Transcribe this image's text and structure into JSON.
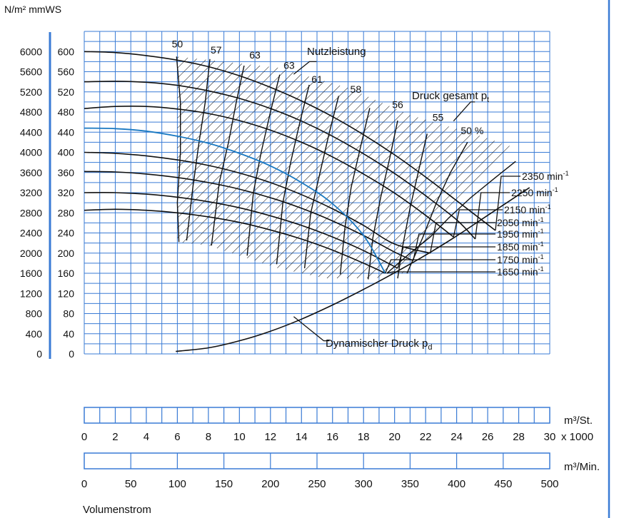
{
  "chart_data": {
    "type": "line",
    "title": "",
    "units": {
      "pa": "N/m² mmWS",
      "q_h": "m³/St.",
      "q_min": "m³/Min.",
      "q_h_factor": "x 1000"
    },
    "xlabel": "Volumenstrom",
    "ylim_mmws": [
      0,
      640
    ],
    "xlim_m3h_x1000": [
      0,
      30
    ],
    "xlim_m3min": [
      0,
      500
    ],
    "yticks_pa": [
      "0",
      "400",
      "800",
      "1200",
      "1600",
      "2000",
      "2400",
      "2800",
      "3200",
      "3600",
      "4000",
      "4400",
      "4800",
      "5200",
      "5600",
      "6000"
    ],
    "yticks_mmws": [
      "0",
      "40",
      "80",
      "120",
      "160",
      "200",
      "240",
      "280",
      "320",
      "360",
      "400",
      "440",
      "480",
      "520",
      "560",
      "600"
    ],
    "xticks_m3h": [
      "0",
      "2",
      "4",
      "6",
      "8",
      "10",
      "12",
      "14",
      "16",
      "18",
      "20",
      "22",
      "24",
      "26",
      "28",
      "30"
    ],
    "xticks_m3min": [
      "0",
      "50",
      "100",
      "150",
      "200",
      "250",
      "300",
      "350",
      "400",
      "450",
      "500"
    ],
    "series": [
      {
        "name": "2350 min-1",
        "label_main": "2350 min",
        "x": [
          0,
          2,
          4,
          6,
          8,
          10,
          12,
          14,
          16,
          18,
          20,
          22,
          24,
          26.5
        ],
        "y": [
          600,
          598,
          592,
          583,
          570,
          552,
          529,
          502,
          471,
          435,
          395,
          351,
          304,
          245
        ]
      },
      {
        "name": "2250 min-1",
        "label_main": "2250 min",
        "x": [
          0,
          2,
          4,
          6,
          8,
          10,
          12,
          14,
          16,
          18,
          20,
          22,
          24,
          25.2
        ],
        "y": [
          540,
          541,
          539,
          533,
          522,
          507,
          487,
          462,
          432,
          397,
          358,
          314,
          266,
          228
        ]
      },
      {
        "name": "2150 min-1",
        "label_main": "2150 min",
        "x": [
          0,
          2,
          4,
          6,
          8,
          10,
          12,
          14,
          16,
          18,
          20,
          22,
          23.8
        ],
        "y": [
          487,
          491,
          491,
          486,
          477,
          463,
          444,
          420,
          391,
          357,
          319,
          275,
          232
        ]
      },
      {
        "name": "2050 min-1",
        "label_main": "2050 min",
        "x": [
          0,
          2,
          4,
          6,
          8,
          10,
          12,
          14,
          16,
          18,
          20,
          22.3
        ],
        "y": [
          400,
          398,
          393,
          385,
          374,
          359,
          340,
          316,
          288,
          255,
          218,
          200
        ]
      },
      {
        "name": "1950 min-1",
        "label_main": "1950 min",
        "x": [
          0,
          2,
          4,
          6,
          8,
          10,
          12,
          14,
          16,
          18,
          20,
          21.2
        ],
        "y": [
          362,
          361,
          357,
          350,
          340,
          327,
          310,
          289,
          264,
          235,
          202,
          185
        ]
      },
      {
        "name": "1850 min-1",
        "label_main": "1850 min",
        "x": [
          0,
          2,
          4,
          6,
          8,
          10,
          12,
          14,
          16,
          18,
          20.2
        ],
        "y": [
          320,
          320,
          317,
          311,
          302,
          290,
          274,
          255,
          232,
          205,
          170
        ]
      },
      {
        "name": "1750 min-1",
        "label_main": "1750 min",
        "x": [
          0,
          2,
          4,
          6,
          8,
          10,
          12,
          14,
          16,
          18,
          19.4
        ],
        "y": [
          285,
          287,
          285,
          280,
          272,
          261,
          246,
          228,
          206,
          180,
          160
        ]
      },
      {
        "name": "Druck gesamt",
        "label_main": "1650 min",
        "x": [
          0,
          2,
          4,
          6,
          8,
          10,
          12,
          14,
          16,
          18,
          19.4
        ],
        "y": [
          448,
          447,
          442,
          432,
          418,
          398,
          373,
          340,
          298,
          235,
          160
        ]
      },
      {
        "name": "Dynamischer Druck",
        "x": [
          5.9,
          8,
          10,
          12,
          14,
          16,
          18,
          20,
          22,
          24,
          26,
          28.7
        ],
        "y": [
          5,
          12,
          26,
          45,
          69,
          97,
          128,
          161,
          196,
          234,
          275,
          330
        ]
      }
    ],
    "efficiency_labels": [
      {
        "text": "50",
        "x": 6.0,
        "y": 608
      },
      {
        "text": "57",
        "x": 8.5,
        "y": 596
      },
      {
        "text": "63",
        "x": 11.0,
        "y": 586
      },
      {
        "text": "63",
        "x": 13.2,
        "y": 566
      },
      {
        "text": "61",
        "x": 15.0,
        "y": 538
      },
      {
        "text": "58",
        "x": 17.5,
        "y": 518
      },
      {
        "text": "56",
        "x": 20.2,
        "y": 488
      },
      {
        "text": "55",
        "x": 22.8,
        "y": 462
      },
      {
        "text": "50 %",
        "x": 25.0,
        "y": 436
      }
    ],
    "annotations": {
      "nutzleistung": "Nutzleistung",
      "druck_gesamt": "Druck gesamt p",
      "druck_gesamt_sub": "t",
      "dynamisch": "Dynamischer Druck p",
      "dynamisch_sub": "d",
      "rpm_sup": "-1"
    },
    "legend": "none",
    "grid": true
  },
  "colors": {
    "grid": "#3a7bd5",
    "axis": "#3a7bd5",
    "curve": "#111111",
    "highlight": "#1a79c2"
  }
}
